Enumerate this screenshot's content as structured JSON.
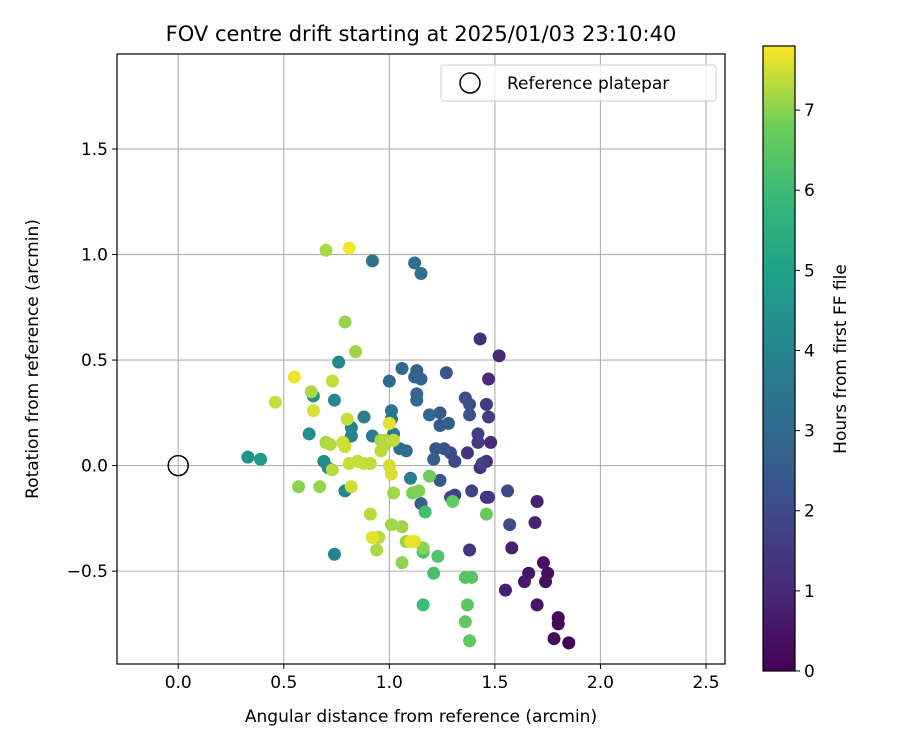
{
  "chart_data": {
    "type": "scatter",
    "title": "FOV centre drift starting at 2025/01/03 23:10:40",
    "xlabel": "Angular distance from reference (arcmin)",
    "ylabel": "Rotation from reference (arcmin)",
    "xlim": [
      -0.29,
      2.59
    ],
    "ylim": [
      -0.94,
      1.95
    ],
    "xticks": [
      0.0,
      0.5,
      1.0,
      1.5,
      2.0,
      2.5
    ],
    "yticks": [
      -0.5,
      0.0,
      0.5,
      1.0,
      1.5
    ],
    "xtick_labels": [
      "0.0",
      "0.5",
      "1.0",
      "1.5",
      "2.0",
      "2.5"
    ],
    "ytick_labels": [
      "−0.5",
      "0.0",
      "0.5",
      "1.0",
      "1.5"
    ],
    "grid": true,
    "legend": {
      "placement": "top-right",
      "entries": [
        "Reference platepar"
      ]
    },
    "colorbar": {
      "label": "Hours from first FF file",
      "colormap": "viridis",
      "range": [
        0,
        7.8
      ],
      "ticks": [
        0,
        1,
        2,
        3,
        4,
        5,
        6,
        7
      ],
      "tick_labels": [
        "0",
        "1",
        "2",
        "3",
        "4",
        "5",
        "6",
        "7"
      ]
    },
    "reference_point": {
      "x": 0.0,
      "y": 0.0,
      "name": "Reference platepar"
    },
    "series": [
      {
        "points": [
          {
            "x": 1.85,
            "y": -0.84,
            "c": 0.05
          },
          {
            "x": 1.8,
            "y": -0.75,
            "c": 0.15
          },
          {
            "x": 1.8,
            "y": -0.72,
            "c": 0.2
          },
          {
            "x": 1.78,
            "y": -0.82,
            "c": 0.25
          },
          {
            "x": 1.75,
            "y": -0.51,
            "c": 0.3
          },
          {
            "x": 1.74,
            "y": -0.55,
            "c": 0.35
          },
          {
            "x": 1.73,
            "y": -0.46,
            "c": 0.4
          },
          {
            "x": 1.7,
            "y": -0.66,
            "c": 0.5
          },
          {
            "x": 1.66,
            "y": -0.51,
            "c": 0.55
          },
          {
            "x": 1.64,
            "y": -0.55,
            "c": 0.6
          },
          {
            "x": 1.58,
            "y": -0.39,
            "c": 0.7
          },
          {
            "x": 1.55,
            "y": -0.59,
            "c": 0.75
          },
          {
            "x": 1.7,
            "y": -0.17,
            "c": 0.8
          },
          {
            "x": 1.69,
            "y": -0.27,
            "c": 0.85
          },
          {
            "x": 1.52,
            "y": 0.52,
            "c": 1.0
          },
          {
            "x": 1.47,
            "y": 0.41,
            "c": 1.05
          },
          {
            "x": 1.48,
            "y": 0.11,
            "c": 1.1
          },
          {
            "x": 1.43,
            "y": 0.6,
            "c": 1.15
          },
          {
            "x": 1.46,
            "y": 0.02,
            "c": 1.2
          },
          {
            "x": 1.43,
            "y": -0.01,
            "c": 1.25
          },
          {
            "x": 1.37,
            "y": 0.06,
            "c": 1.3
          },
          {
            "x": 1.38,
            "y": -0.4,
            "c": 1.35
          },
          {
            "x": 1.46,
            "y": -0.15,
            "c": 1.4
          },
          {
            "x": 1.47,
            "y": -0.15,
            "c": 1.45
          },
          {
            "x": 1.42,
            "y": 0.11,
            "c": 1.5
          },
          {
            "x": 1.46,
            "y": 0.29,
            "c": 1.55
          },
          {
            "x": 1.47,
            "y": 0.23,
            "c": 1.6
          },
          {
            "x": 1.42,
            "y": 0.15,
            "c": 1.65
          },
          {
            "x": 1.44,
            "y": 0.01,
            "c": 1.7
          },
          {
            "x": 1.39,
            "y": -0.12,
            "c": 1.75
          },
          {
            "x": 1.31,
            "y": -0.14,
            "c": 1.8
          },
          {
            "x": 1.29,
            "y": -0.15,
            "c": 1.85
          },
          {
            "x": 1.29,
            "y": 0.06,
            "c": 1.9
          },
          {
            "x": 1.31,
            "y": 0.02,
            "c": 1.95
          },
          {
            "x": 1.56,
            "y": -0.12,
            "c": 2.0
          },
          {
            "x": 1.57,
            "y": -0.28,
            "c": 2.05
          },
          {
            "x": 1.36,
            "y": 0.32,
            "c": 2.1
          },
          {
            "x": 1.38,
            "y": 0.29,
            "c": 2.15
          },
          {
            "x": 1.38,
            "y": 0.24,
            "c": 2.2
          },
          {
            "x": 1.27,
            "y": 0.44,
            "c": 2.25
          },
          {
            "x": 1.26,
            "y": 0.08,
            "c": 2.3
          },
          {
            "x": 1.22,
            "y": 0.08,
            "c": 2.35
          },
          {
            "x": 1.24,
            "y": -0.07,
            "c": 2.4
          },
          {
            "x": 1.24,
            "y": 0.25,
            "c": 2.45
          },
          {
            "x": 1.24,
            "y": 0.19,
            "c": 2.5
          },
          {
            "x": 1.28,
            "y": 0.2,
            "c": 2.55
          },
          {
            "x": 1.21,
            "y": 0.03,
            "c": 2.6
          },
          {
            "x": 1.15,
            "y": -0.18,
            "c": 2.65
          },
          {
            "x": 1.12,
            "y": 0.42,
            "c": 2.7
          },
          {
            "x": 1.13,
            "y": 0.45,
            "c": 2.75
          },
          {
            "x": 1.15,
            "y": 0.41,
            "c": 2.8
          },
          {
            "x": 1.13,
            "y": 0.34,
            "c": 2.85
          },
          {
            "x": 1.13,
            "y": 0.31,
            "c": 2.9
          },
          {
            "x": 1.19,
            "y": 0.24,
            "c": 2.95
          },
          {
            "x": 1.06,
            "y": 0.46,
            "c": 3.0
          },
          {
            "x": 1.0,
            "y": 0.4,
            "c": 3.05
          },
          {
            "x": 1.05,
            "y": 0.08,
            "c": 3.1
          },
          {
            "x": 1.08,
            "y": 0.07,
            "c": 3.15
          },
          {
            "x": 1.12,
            "y": 0.96,
            "c": 3.2
          },
          {
            "x": 1.15,
            "y": 0.91,
            "c": 3.25
          },
          {
            "x": 0.92,
            "y": 0.97,
            "c": 3.35
          },
          {
            "x": 1.01,
            "y": 0.26,
            "c": 3.45
          },
          {
            "x": 1.01,
            "y": 0.22,
            "c": 3.5
          },
          {
            "x": 1.02,
            "y": 0.15,
            "c": 3.55
          },
          {
            "x": 0.92,
            "y": 0.14,
            "c": 3.6
          },
          {
            "x": 1.1,
            "y": -0.06,
            "c": 3.7
          },
          {
            "x": 0.88,
            "y": 0.23,
            "c": 3.8
          },
          {
            "x": 0.82,
            "y": 0.18,
            "c": 3.9
          },
          {
            "x": 0.82,
            "y": 0.14,
            "c": 3.95
          },
          {
            "x": 0.74,
            "y": -0.42,
            "c": 4.0
          },
          {
            "x": 0.76,
            "y": 0.49,
            "c": 4.05
          },
          {
            "x": 0.74,
            "y": 0.31,
            "c": 4.1
          },
          {
            "x": 0.79,
            "y": -0.12,
            "c": 4.15
          },
          {
            "x": 0.69,
            "y": 0.02,
            "c": 4.2
          },
          {
            "x": 0.71,
            "y": -0.01,
            "c": 4.25
          },
          {
            "x": 0.64,
            "y": 0.33,
            "c": 4.3
          },
          {
            "x": 0.62,
            "y": 0.15,
            "c": 4.4
          },
          {
            "x": 0.33,
            "y": 0.04,
            "c": 4.5
          },
          {
            "x": 0.39,
            "y": 0.03,
            "c": 4.6
          },
          {
            "x": 1.16,
            "y": -0.66,
            "c": 6.0
          },
          {
            "x": 1.17,
            "y": -0.22,
            "c": 6.1
          },
          {
            "x": 1.21,
            "y": -0.51,
            "c": 6.2
          },
          {
            "x": 1.16,
            "y": -0.41,
            "c": 6.25
          },
          {
            "x": 1.23,
            "y": -0.43,
            "c": 6.3
          },
          {
            "x": 1.36,
            "y": -0.53,
            "c": 6.4
          },
          {
            "x": 1.39,
            "y": -0.53,
            "c": 6.45
          },
          {
            "x": 1.37,
            "y": -0.66,
            "c": 6.5
          },
          {
            "x": 1.38,
            "y": -0.83,
            "c": 6.55
          },
          {
            "x": 1.36,
            "y": -0.74,
            "c": 6.6
          },
          {
            "x": 1.3,
            "y": -0.17,
            "c": 6.65
          },
          {
            "x": 1.46,
            "y": -0.23,
            "c": 6.7
          },
          {
            "x": 1.19,
            "y": -0.05,
            "c": 6.8
          },
          {
            "x": 1.11,
            "y": -0.13,
            "c": 6.9
          },
          {
            "x": 1.14,
            "y": -0.12,
            "c": 6.95
          },
          {
            "x": 1.16,
            "y": -0.39,
            "c": 7.0
          },
          {
            "x": 1.06,
            "y": -0.46,
            "c": 7.05
          },
          {
            "x": 1.08,
            "y": -0.36,
            "c": 7.1
          },
          {
            "x": 1.06,
            "y": -0.29,
            "c": 7.12
          },
          {
            "x": 1.01,
            "y": -0.28,
            "c": 7.15
          },
          {
            "x": 1.02,
            "y": -0.13,
            "c": 7.18
          },
          {
            "x": 0.96,
            "y": 0.12,
            "c": 7.2
          },
          {
            "x": 0.98,
            "y": 0.1,
            "c": 7.22
          },
          {
            "x": 0.94,
            "y": -0.4,
            "c": 7.25
          },
          {
            "x": 0.92,
            "y": -0.34,
            "c": 7.28
          },
          {
            "x": 0.95,
            "y": -0.34,
            "c": 7.3
          },
          {
            "x": 0.91,
            "y": -0.23,
            "c": 7.32
          },
          {
            "x": 0.96,
            "y": 0.07,
            "c": 7.35
          },
          {
            "x": 0.91,
            "y": 0.01,
            "c": 7.38
          },
          {
            "x": 0.85,
            "y": 0.02,
            "c": 7.4
          },
          {
            "x": 0.88,
            "y": 0.01,
            "c": 7.42
          },
          {
            "x": 0.81,
            "y": 0.01,
            "c": 7.44
          },
          {
            "x": 0.79,
            "y": 0.09,
            "c": 7.46
          },
          {
            "x": 0.78,
            "y": 0.11,
            "c": 7.48
          },
          {
            "x": 0.82,
            "y": -0.1,
            "c": 7.5
          },
          {
            "x": 0.72,
            "y": 0.1,
            "c": 7.3
          },
          {
            "x": 0.7,
            "y": 0.11,
            "c": 7.2
          },
          {
            "x": 0.73,
            "y": -0.02,
            "c": 7.35
          },
          {
            "x": 0.67,
            "y": -0.1,
            "c": 7.1
          },
          {
            "x": 0.57,
            "y": -0.1,
            "c": 7.0
          },
          {
            "x": 0.46,
            "y": 0.3,
            "c": 7.45
          },
          {
            "x": 0.64,
            "y": 0.26,
            "c": 7.55
          },
          {
            "x": 0.63,
            "y": 0.35,
            "c": 7.25
          },
          {
            "x": 0.55,
            "y": 0.42,
            "c": 7.7
          },
          {
            "x": 0.73,
            "y": 0.4,
            "c": 7.4
          },
          {
            "x": 0.84,
            "y": 0.54,
            "c": 7.15
          },
          {
            "x": 0.79,
            "y": 0.68,
            "c": 7.1
          },
          {
            "x": 0.8,
            "y": 0.22,
            "c": 7.42
          },
          {
            "x": 1.0,
            "y": 0.2,
            "c": 7.6
          },
          {
            "x": 1.0,
            "y": 0.0,
            "c": 7.5
          },
          {
            "x": 1.01,
            "y": -0.04,
            "c": 7.55
          },
          {
            "x": 0.98,
            "y": 0.12,
            "c": 7.3
          },
          {
            "x": 1.02,
            "y": 0.12,
            "c": 7.4
          },
          {
            "x": 1.1,
            "y": -0.36,
            "c": 7.65
          },
          {
            "x": 1.12,
            "y": -0.36,
            "c": 7.6
          },
          {
            "x": 0.92,
            "y": -0.34,
            "c": 7.62
          },
          {
            "x": 0.7,
            "y": 1.02,
            "c": 7.2
          },
          {
            "x": 0.81,
            "y": 1.03,
            "c": 7.75
          }
        ]
      }
    ]
  }
}
